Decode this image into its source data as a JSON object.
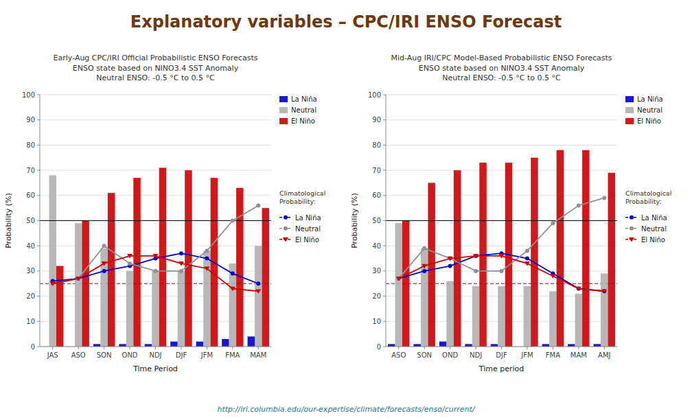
{
  "title": "Explanatory variables – CPC/IRI ENSO Forecast",
  "annotations": [
    "http://iri.columbia.edu/our-expertise/climate/forecasts/enso/current/"
  ],
  "chart_data": [
    {
      "type": "bar",
      "title": "Early-Aug CPC/IRI Official Probabilistic ENSO Forecasts",
      "subtitle": [
        "ENSO state based on NINO3.4 SST Anomaly",
        "Neutral ENSO: -0.5 °C to 0.5 °C"
      ],
      "xlabel": "Time Period",
      "ylabel": "Probability (%)",
      "categories": [
        "JAS",
        "ASO",
        "SON",
        "OND",
        "NDJ",
        "DJF",
        "JFM",
        "FMA",
        "MAM"
      ],
      "series": [
        {
          "name": "La Niña",
          "type": "bar",
          "color": "#0000CD",
          "values": [
            0,
            0,
            1,
            1,
            1,
            2,
            2,
            3,
            4
          ]
        },
        {
          "name": "Neutral",
          "type": "bar",
          "color": "#B0B0B0",
          "values": [
            68,
            49,
            39,
            30,
            30,
            30,
            38,
            33,
            40
          ]
        },
        {
          "name": "El Niño",
          "type": "bar",
          "color": "#CC0000",
          "values": [
            32,
            50,
            61,
            67,
            71,
            70,
            67,
            63,
            55
          ]
        },
        {
          "name": "La Niña",
          "type": "line",
          "color": "#0000CD",
          "marker": "circle",
          "line_style": "solid",
          "values": [
            26,
            27,
            30,
            32,
            35,
            37,
            35,
            29,
            25
          ],
          "climatological": 25
        },
        {
          "name": "Neutral",
          "type": "line",
          "color": "#909090",
          "marker": "circle",
          "line_style": "solid",
          "values": [
            25,
            27,
            40,
            33,
            30,
            30,
            38,
            50,
            56
          ],
          "climatological": 50
        },
        {
          "name": "El Niño",
          "type": "line",
          "color": "#CC0000",
          "marker": "triangle-down",
          "line_style": "solid",
          "values": [
            25,
            27,
            33,
            36,
            36,
            33,
            31,
            23,
            22
          ],
          "climatological": 25
        }
      ],
      "hline": 50,
      "ylim": [
        0,
        100
      ],
      "yticks": [
        0,
        10,
        20,
        30,
        40,
        50,
        60,
        70,
        80,
        90,
        100
      ],
      "grid": true,
      "legend": "right",
      "legend_title": "Climatological\nProbability:"
    },
    {
      "type": "bar",
      "title": "Mid-Aug IRI/CPC Model-Based Probabilistic ENSO Forecasts",
      "subtitle": [
        "ENSO state based on NINO3.4 SST Anomaly",
        "Neutral ENSO: -0.5 °C to 0.5 °C"
      ],
      "xlabel": "Time period",
      "ylabel": "Probability (%)",
      "categories": [
        "ASO",
        "SON",
        "OND",
        "NDJ",
        "DJF",
        "JFM",
        "FMA",
        "MAM",
        "AMJ"
      ],
      "series": [
        {
          "name": "La Niña",
          "type": "bar",
          "color": "#0000CD",
          "values": [
            1,
            1,
            2,
            1,
            1,
            0,
            1,
            1,
            1
          ]
        },
        {
          "name": "Neutral",
          "type": "bar",
          "color": "#B0B0B0",
          "values": [
            49,
            39,
            26,
            24,
            24,
            24,
            22,
            21,
            29
          ]
        },
        {
          "name": "El Niño",
          "type": "bar",
          "color": "#CC0000",
          "values": [
            50,
            65,
            70,
            73,
            73,
            75,
            78,
            78,
            69
          ]
        },
        {
          "name": "La Niña",
          "type": "line",
          "color": "#0000CD",
          "marker": "circle",
          "line_style": "solid",
          "values": [
            27,
            30,
            32,
            36,
            37,
            35,
            29,
            23,
            22
          ],
          "climatological": 25
        },
        {
          "name": "Neutral",
          "type": "line",
          "color": "#909090",
          "marker": "circle",
          "line_style": "solid",
          "values": [
            27,
            39,
            35,
            30,
            30,
            38,
            49,
            56,
            59
          ],
          "climatological": 50
        },
        {
          "name": "El Niño",
          "type": "line",
          "color": "#CC0000",
          "marker": "triangle-down",
          "line_style": "solid",
          "values": [
            27,
            32,
            35,
            36,
            36,
            33,
            28,
            23,
            22
          ],
          "climatological": 25
        }
      ],
      "hline": 50,
      "ylim": [
        0,
        100
      ],
      "yticks": [
        0,
        10,
        20,
        30,
        40,
        50,
        60,
        70,
        80,
        90,
        100
      ],
      "grid": true,
      "legend": "right",
      "legend_title": "Climatological\nProbability:"
    }
  ]
}
